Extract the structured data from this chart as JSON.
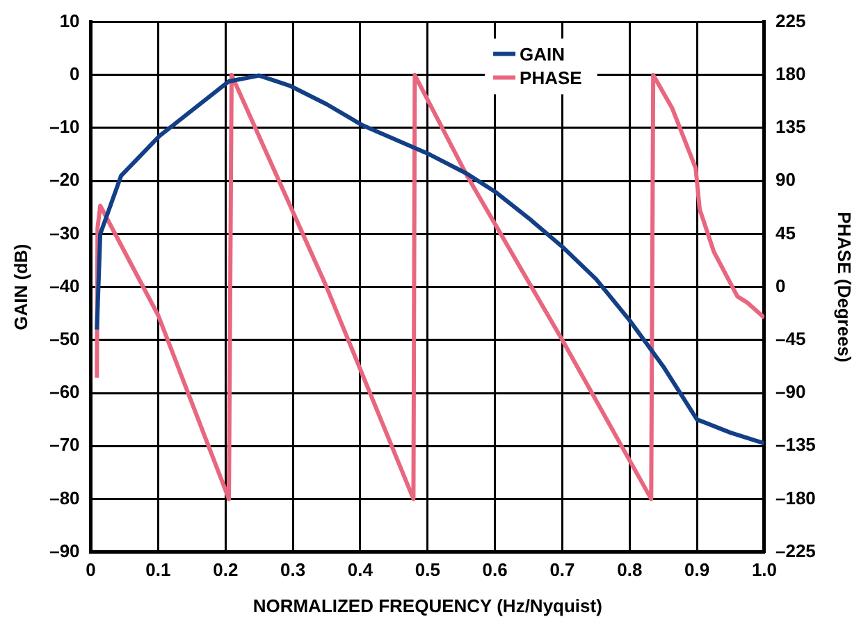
{
  "chart_data": {
    "type": "line",
    "xlabel": "NORMALIZED FREQUENCY (Hz/Nyquist)",
    "ylabel": "GAIN (dB)",
    "y2label": "PHASE (Degrees)",
    "xlim": [
      0,
      1
    ],
    "xticks": [
      0,
      0.1,
      0.2,
      0.3,
      0.4,
      0.5,
      0.6,
      0.7,
      0.8,
      0.9,
      {
        "value": 1,
        "label": "1.0"
      }
    ],
    "ylim": [
      -90,
      10
    ],
    "yticks": [
      {
        "value": -90,
        "label": "–90"
      },
      {
        "value": -80,
        "label": "–80"
      },
      {
        "value": -70,
        "label": "–70"
      },
      {
        "value": -60,
        "label": "–60"
      },
      {
        "value": -50,
        "label": "–50"
      },
      {
        "value": -40,
        "label": "–40"
      },
      {
        "value": -30,
        "label": "–30"
      },
      {
        "value": -20,
        "label": "–20"
      },
      {
        "value": -10,
        "label": "–10"
      },
      0,
      10
    ],
    "y2lim": [
      -225,
      225
    ],
    "y2ticks": [
      {
        "value": -225,
        "label": "–225"
      },
      {
        "value": -180,
        "label": "–180"
      },
      {
        "value": -135,
        "label": "–135"
      },
      {
        "value": -90,
        "label": "–90"
      },
      {
        "value": -45,
        "label": "–45"
      },
      0,
      45,
      90,
      135,
      180,
      225
    ],
    "grid": true,
    "legend": "top",
    "line_style": "solid",
    "marker": "none",
    "series": [
      {
        "name": "GAIN",
        "color": "#123f86",
        "x": [
          0.009,
          0.014,
          0.045,
          0.102,
          0.205,
          0.25,
          0.295,
          0.35,
          0.402,
          0.503,
          0.558,
          0.6,
          0.65,
          0.7,
          0.75,
          0.8,
          0.85,
          0.9,
          0.95,
          1.0
        ],
        "values": [
          -48,
          -30,
          -19,
          -11.5,
          -1.2,
          -0.1,
          -2,
          -5.5,
          -9.4,
          -15,
          -18.6,
          -22,
          -27,
          -32.4,
          -38.5,
          -46.3,
          -55,
          -65,
          -67.5,
          -69.5
        ]
      },
      {
        "name": "PHASE",
        "color": "#e8677f",
        "axis": "y2",
        "x": [
          0.009,
          0.01,
          0.014,
          0.1,
          0.205,
          0.209,
          0.35,
          0.479,
          0.481,
          0.558,
          0.7,
          0.832,
          0.835,
          0.863,
          0.898,
          0.904,
          0.925,
          0.96,
          0.974,
          1.0
        ],
        "values": [
          -77,
          50,
          69,
          -24,
          -180,
          180,
          0,
          -180,
          180,
          95,
          -45,
          -180,
          180,
          152,
          101,
          66,
          30,
          -8,
          -13,
          -26
        ]
      }
    ]
  }
}
